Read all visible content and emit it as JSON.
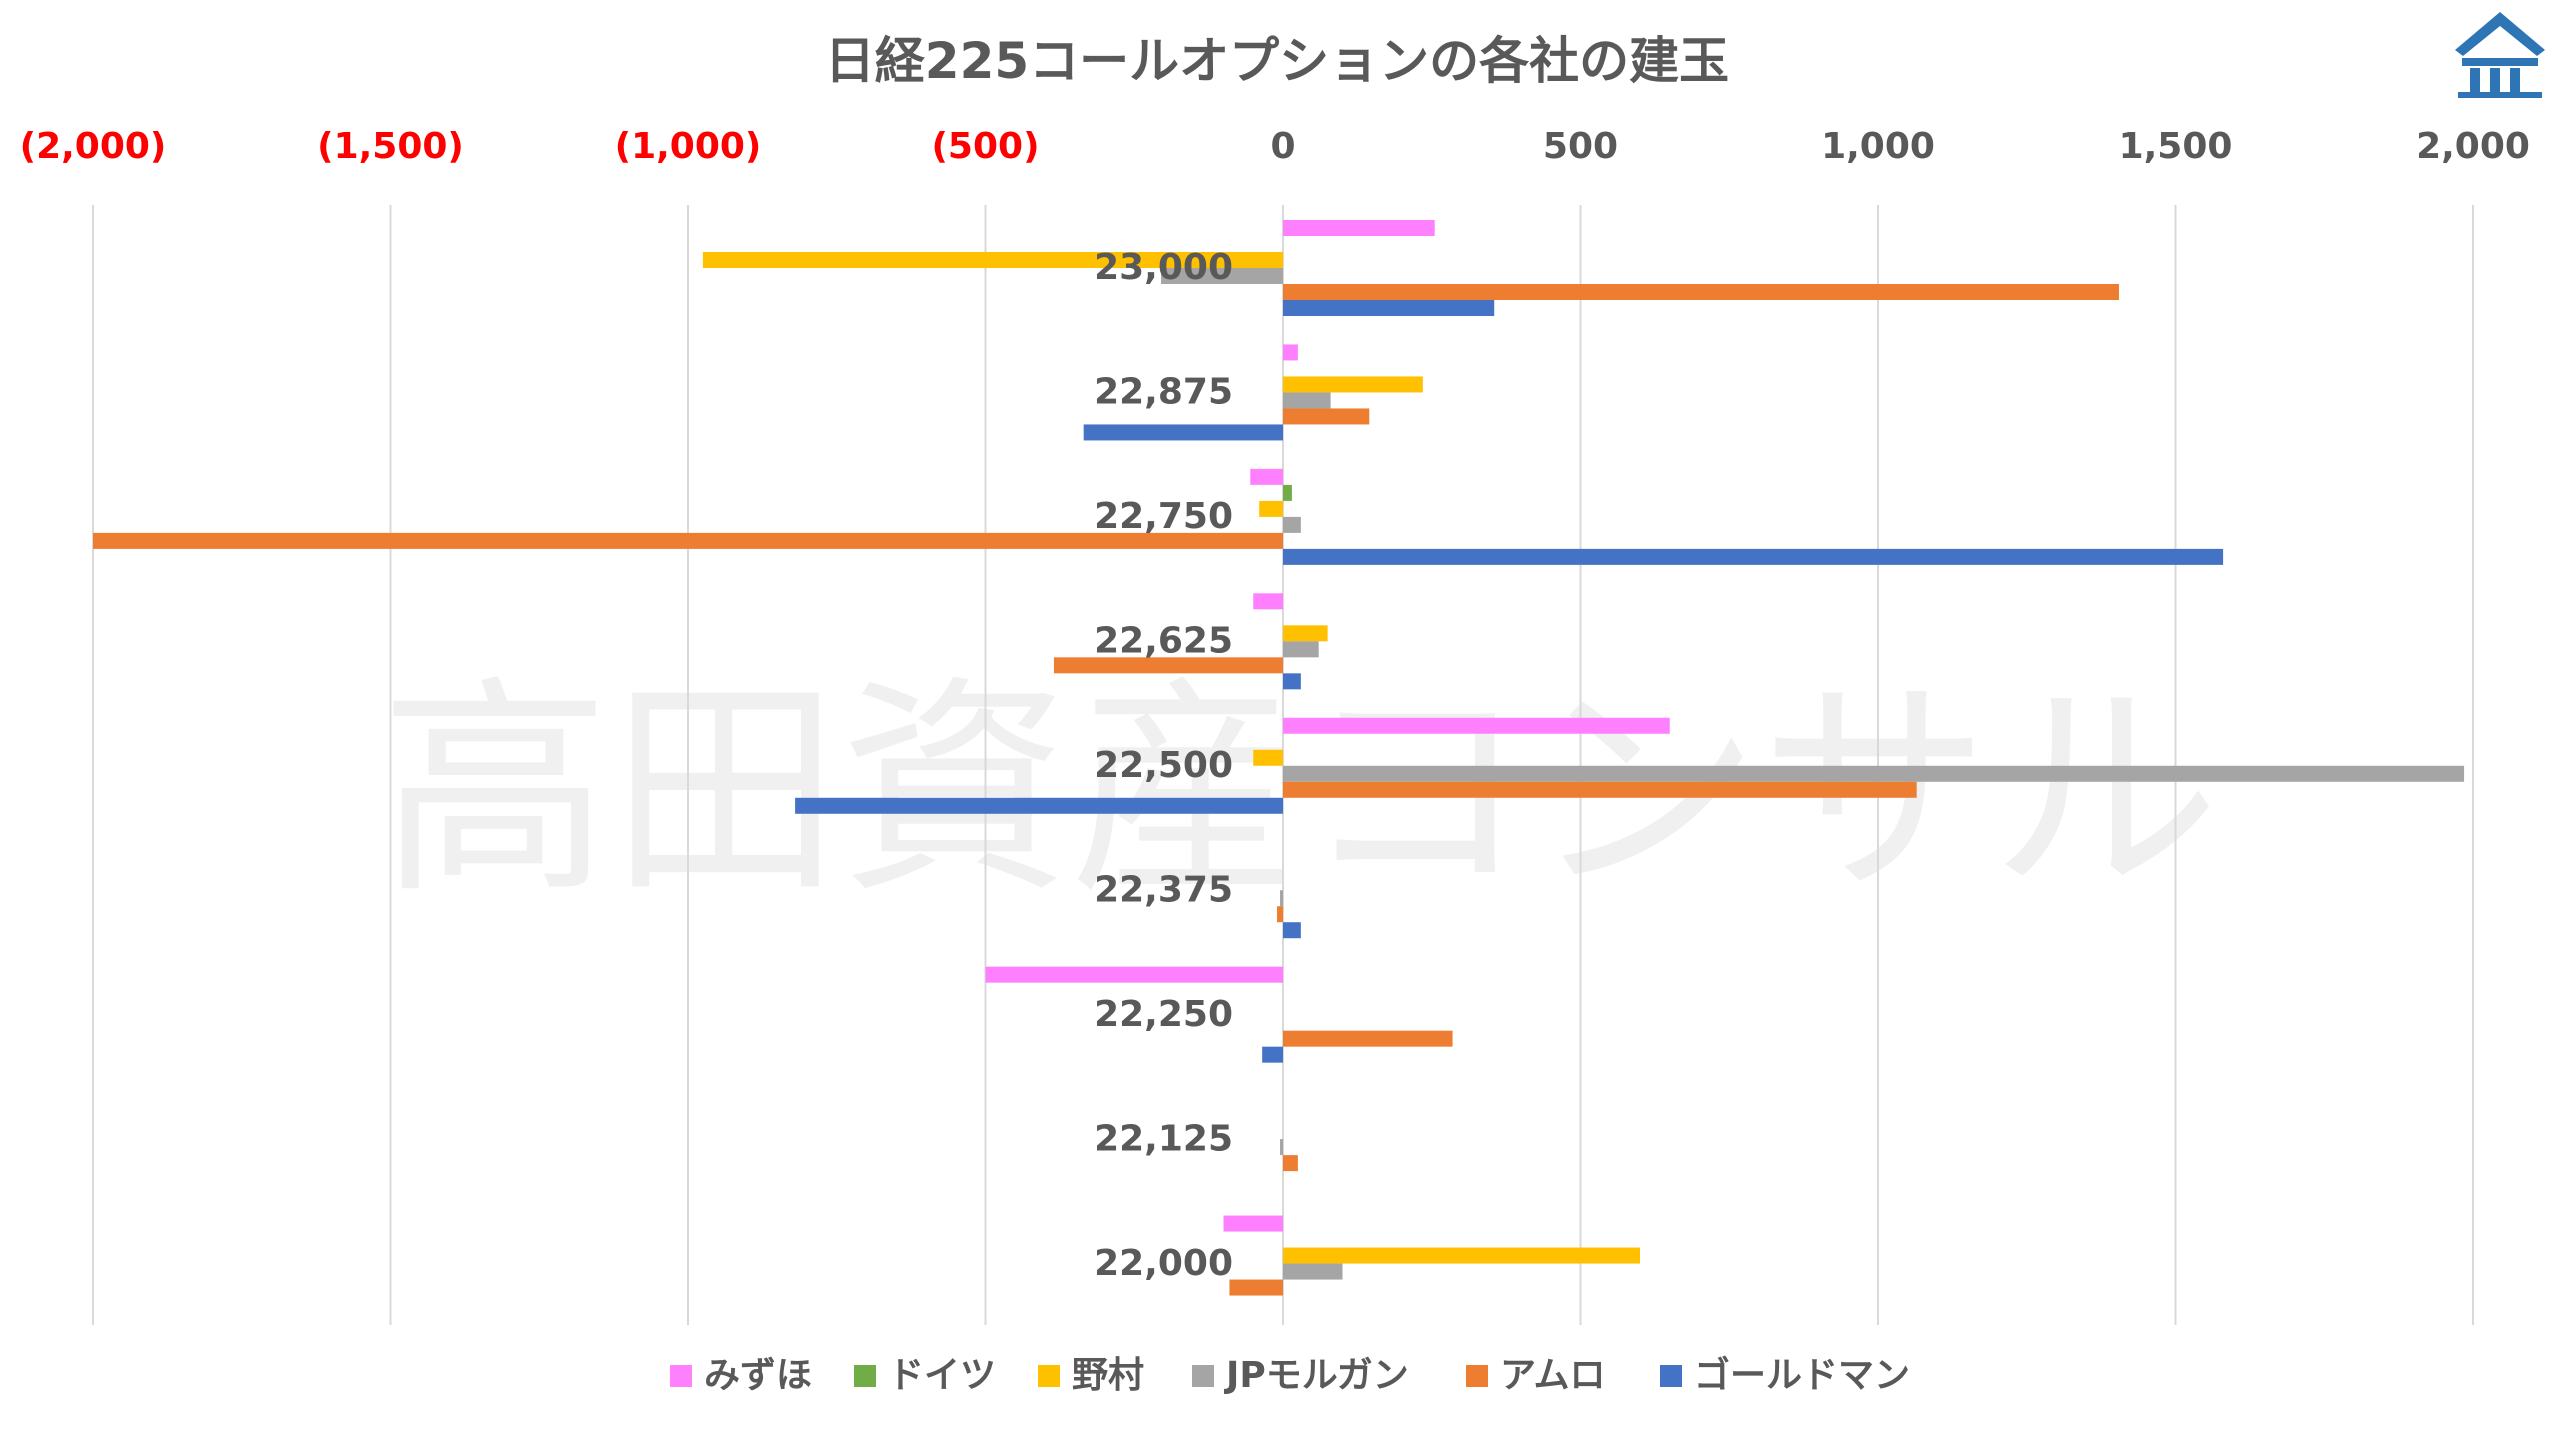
{
  "chart_data": {
    "type": "bar",
    "orientation": "horizontal",
    "title": "日経225コールオプションの各社の建玉",
    "watermark": "高田資産コンサル",
    "xlim": [
      -2000,
      2000
    ],
    "x_ticks": [
      {
        "value": -2000,
        "label": "(2,000)"
      },
      {
        "value": -1500,
        "label": "(1,500)"
      },
      {
        "value": -1000,
        "label": "(1,000)"
      },
      {
        "value": -500,
        "label": "(500)"
      },
      {
        "value": 0,
        "label": "0"
      },
      {
        "value": 500,
        "label": "500"
      },
      {
        "value": 1000,
        "label": "1,000"
      },
      {
        "value": 1500,
        "label": "1,500"
      },
      {
        "value": 2000,
        "label": "2,000"
      }
    ],
    "categories": [
      "23,000",
      "22,875",
      "22,750",
      "22,625",
      "22,500",
      "22,375",
      "22,250",
      "22,125",
      "22,000"
    ],
    "series": [
      {
        "name": "みずほ",
        "color": "#ff80ff",
        "values": [
          255,
          25,
          -55,
          -50,
          650,
          0,
          -500,
          0,
          -100
        ]
      },
      {
        "name": "ドイツ",
        "color": "#70ad47",
        "values": [
          0,
          0,
          15,
          0,
          0,
          0,
          0,
          0,
          0
        ]
      },
      {
        "name": "野村",
        "color": "#ffc000",
        "values": [
          -975,
          235,
          -40,
          75,
          -50,
          0,
          0,
          0,
          600
        ]
      },
      {
        "name": "JPモルガン",
        "color": "#a5a5a5",
        "values": [
          -205,
          80,
          30,
          60,
          1985,
          -5,
          0,
          -5,
          100
        ]
      },
      {
        "name": "アムロ",
        "color": "#ed7d31",
        "values": [
          1405,
          145,
          -2000,
          -385,
          1065,
          -10,
          285,
          25,
          -90
        ]
      },
      {
        "name": "ゴールドマン",
        "color": "#4472c4",
        "values": [
          355,
          -335,
          1580,
          30,
          -820,
          30,
          -35,
          0,
          0
        ]
      }
    ],
    "grid": true,
    "legend": "bottom"
  },
  "logo": {
    "name": "roof-logo",
    "color": "#2e75b6"
  }
}
